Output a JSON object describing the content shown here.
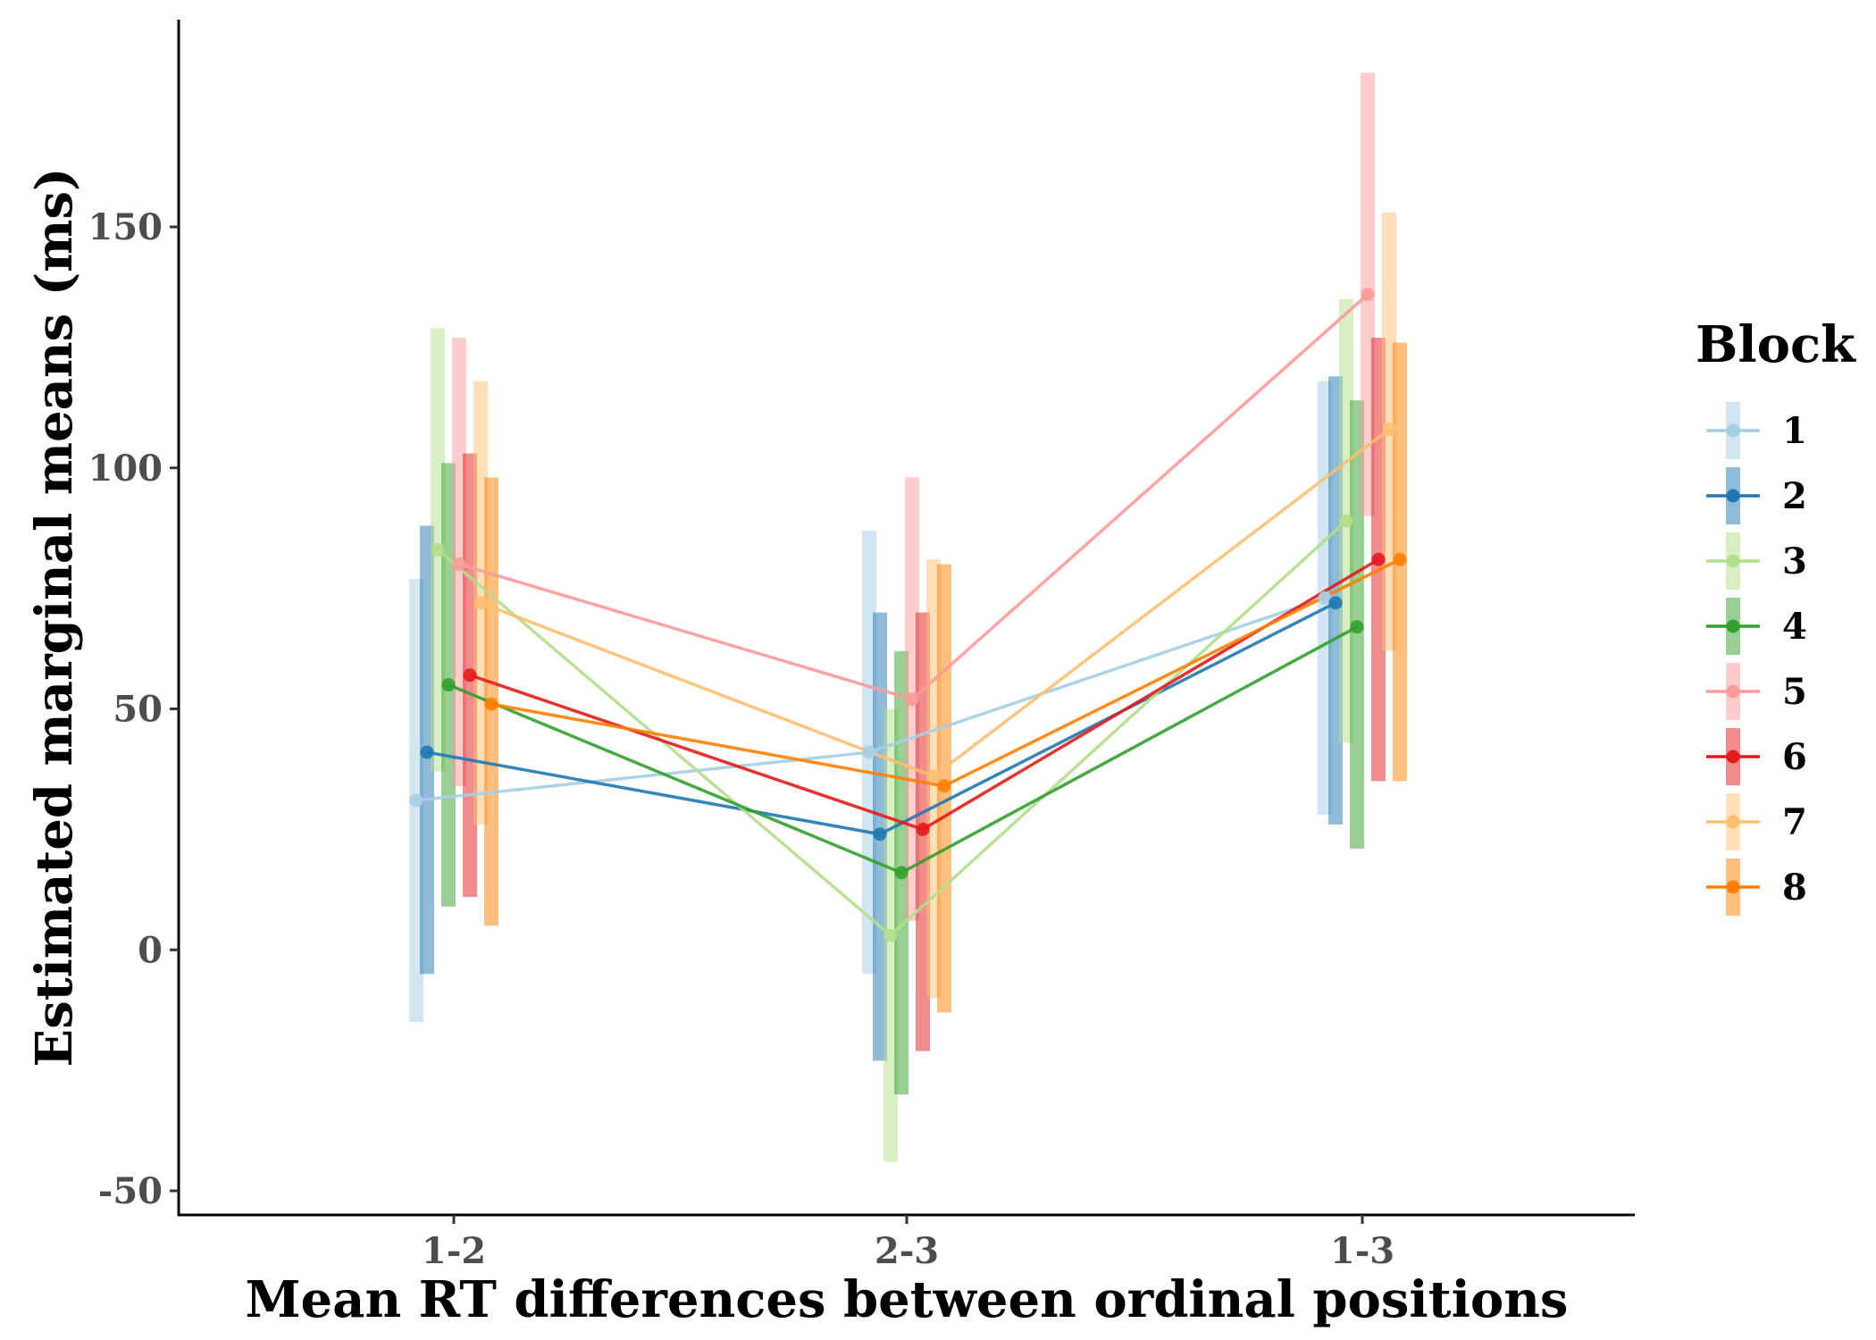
{
  "chart_data": {
    "type": "line",
    "title": "",
    "xlabel": "Mean RT differences between ordinal positions",
    "ylabel": "Estimated marginal means (ms)",
    "categories": [
      "1-2",
      "2-3",
      "1-3"
    ],
    "y_ticks": [
      -50,
      0,
      50,
      100,
      150
    ],
    "y_tick_labels": [
      "-50",
      "0",
      "50",
      "100",
      "150"
    ],
    "ylim": [
      -55,
      193
    ],
    "grid": false,
    "legend": {
      "title": "Block",
      "position": "right"
    },
    "series": [
      {
        "name": "1",
        "color": "#A6CEE3",
        "values": [
          31,
          41,
          73
        ],
        "lower": [
          -15,
          -5,
          28
        ],
        "upper": [
          77,
          87,
          118
        ]
      },
      {
        "name": "2",
        "color": "#1F78B4",
        "values": [
          41,
          24,
          72
        ],
        "lower": [
          -5,
          -23,
          26
        ],
        "upper": [
          88,
          70,
          119
        ]
      },
      {
        "name": "3",
        "color": "#B2DF8A",
        "values": [
          83,
          3,
          89
        ],
        "lower": [
          37,
          -44,
          43
        ],
        "upper": [
          129,
          50,
          135
        ]
      },
      {
        "name": "4",
        "color": "#33A02C",
        "values": [
          55,
          16,
          67
        ],
        "lower": [
          9,
          -30,
          21
        ],
        "upper": [
          101,
          62,
          114
        ]
      },
      {
        "name": "5",
        "color": "#FB9A99",
        "values": [
          80,
          52,
          136
        ],
        "lower": [
          34,
          6,
          90
        ],
        "upper": [
          127,
          98,
          182
        ]
      },
      {
        "name": "6",
        "color": "#E31A1C",
        "values": [
          57,
          25,
          81
        ],
        "lower": [
          11,
          -21,
          35
        ],
        "upper": [
          103,
          70,
          127
        ]
      },
      {
        "name": "7",
        "color": "#FDBF6F",
        "values": [
          72,
          36,
          108
        ],
        "lower": [
          26,
          -10,
          62
        ],
        "upper": [
          118,
          81,
          153
        ]
      },
      {
        "name": "8",
        "color": "#FF7F00",
        "values": [
          51,
          34,
          81
        ],
        "lower": [
          5,
          -13,
          35
        ],
        "upper": [
          98,
          80,
          126
        ]
      }
    ]
  }
}
